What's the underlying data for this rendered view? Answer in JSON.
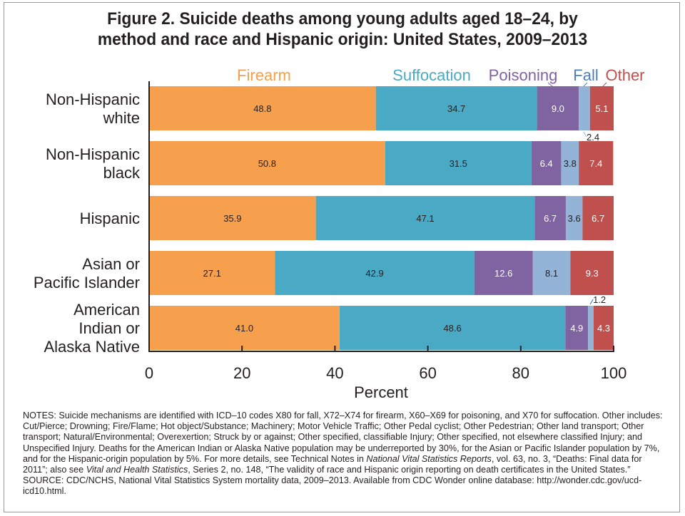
{
  "chart_data": {
    "type": "bar",
    "orientation": "horizontal",
    "stacked": true,
    "title": "Figure 2. Suicide deaths among young adults aged 18–24, by method and race and Hispanic origin: United States, 2009–2013",
    "title_lines": [
      "Figure 2. Suicide deaths among young adults aged 18–24, by",
      "method and race and Hispanic origin: United States, 2009–2013"
    ],
    "xlabel": "Percent",
    "ylabel": "",
    "xlim": [
      0,
      100
    ],
    "xticks": [
      0,
      20,
      40,
      60,
      80,
      100
    ],
    "grid": false,
    "legend_placement": "top",
    "categories": [
      [
        "Non-Hispanic",
        "white"
      ],
      [
        "Non-Hispanic",
        "black"
      ],
      [
        "Hispanic"
      ],
      [
        "Asian or",
        "Pacific Islander"
      ],
      [
        "American",
        "Indian or",
        "Alaska Native"
      ]
    ],
    "series": [
      {
        "name": "Firearm",
        "color": "#f6a04d",
        "legend_color": "#f6a04d",
        "label_color": "#231f20",
        "values": [
          48.8,
          50.8,
          35.9,
          27.1,
          41.0
        ]
      },
      {
        "name": "Suffocation",
        "color": "#4aaac6",
        "legend_color": "#4aaac6",
        "label_color": "#231f20",
        "values": [
          34.7,
          31.5,
          47.1,
          42.9,
          48.6
        ]
      },
      {
        "name": "Poisoning",
        "color": "#8063a1",
        "legend_color": "#8063a1",
        "label_color": "#ffffff",
        "values": [
          9.0,
          6.4,
          6.7,
          12.6,
          4.9
        ]
      },
      {
        "name": "Fall",
        "color": "#93b3d7",
        "legend_color": "#4a7ebb",
        "label_color": "#231f20",
        "values": [
          2.4,
          3.8,
          3.6,
          8.1,
          1.2
        ]
      },
      {
        "name": "Other",
        "color": "#c0504d",
        "legend_color": "#c0504d",
        "label_color": "#ffffff",
        "values": [
          5.1,
          7.4,
          6.7,
          9.3,
          4.3
        ]
      }
    ],
    "data_labels": [
      [
        "48.8",
        "34.7",
        "9.0",
        "2.4",
        "5.1"
      ],
      [
        "50.8",
        "31.5",
        "6.4",
        "3.8",
        "7.4"
      ],
      [
        "35.9",
        "47.1",
        "6.7",
        "3.6",
        "6.7"
      ],
      [
        "27.1",
        "42.9",
        "12.6",
        "8.1",
        "9.3"
      ],
      [
        "41.0",
        "48.6",
        "4.9",
        "1.2",
        "4.3"
      ]
    ],
    "external_labels": [
      {
        "row": 0,
        "series": "Fall",
        "text": "2.4",
        "position": "below"
      },
      {
        "row": 4,
        "series": "Fall",
        "text": "1.2",
        "position": "above"
      }
    ]
  },
  "notes": {
    "notes_prefix": "NOTES: Suicide mechanisms are identified with ICD–10 codes X80 for fall, X72–X74 for firearm, X60–X69 for poisoning, and X70 for suffocation. Other includes: Cut/Pierce; Drowning; Fire/Flame; Hot object/Substance; Machinery; Motor Vehicle Traffic; Other Pedal cyclist; Other Pedestrian; Other land transport; Other transport; Natural/Environmental; Overexertion; Struck by or against; Other specified, classifiable Injury; Other specified, not elsewhere classified Injury; and Unspecified Injury. Deaths for the American Indian or Alaska Native population may be underreported by 30%, for the Asian or Pacific Islander population by 7%, and for the Hispanic-origin population by 5%. For more details, see Technical Notes in ",
    "notes_italic_1": "National Vital Statistics Reports",
    "notes_mid": ", vol. 63, no. 3, “Deaths: Final data for 2011”; also see ",
    "notes_italic_2": "Vital and Health Statistics",
    "notes_suffix": ", Series 2, no. 148, “The validity of race and Hispanic origin reporting on death certificates in the United States.”",
    "source": "SOURCE: CDC/NCHS, National Vital Statistics System mortality data, 2009–2013. Available from CDC Wonder online database: http://wonder.cdc.gov/ucd-icd10.html."
  }
}
